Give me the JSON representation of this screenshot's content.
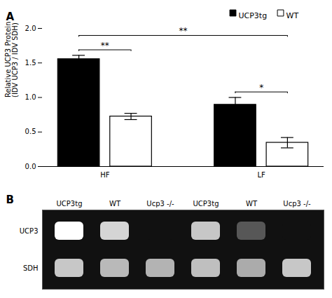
{
  "chart_data": [
    {
      "type": "bar",
      "title": "A",
      "ylabel": "Relative UCP3 Protein\n(IDV UCP3 / IDV SDH)",
      "categories": [
        "HF",
        "LF"
      ],
      "series": [
        {
          "name": "UCP3tg",
          "color": "#000000",
          "values": [
            1.555,
            0.895
          ],
          "errors": [
            0.055,
            0.105
          ]
        },
        {
          "name": "WT",
          "color": "#ffffff",
          "values": [
            0.725,
            0.345
          ],
          "errors": [
            0.045,
            0.075
          ]
        }
      ],
      "ylim": [
        0.0,
        2.0
      ],
      "yticks": [
        {
          "value": 0.0,
          "label": "0.0"
        },
        0.5,
        {
          "value": 1.0,
          "label": "1.0"
        },
        1.5,
        {
          "value": 2.0,
          "label": "2.0"
        }
      ],
      "legend": "upper right",
      "annotations": [
        {
          "text": "**",
          "between": [
            [
              "HF",
              "UCP3tg"
            ],
            [
              "HF",
              "WT"
            ]
          ]
        },
        {
          "text": "*",
          "between": [
            [
              "LF",
              "UCP3tg"
            ],
            [
              "LF",
              "WT"
            ]
          ]
        },
        {
          "text": "**",
          "between": [
            [
              "HF",
              "UCP3tg"
            ],
            [
              "LF",
              "WT"
            ]
          ]
        }
      ]
    },
    {
      "type": "heatmap",
      "title": "B",
      "x": [
        "UCP3tg",
        "WT",
        "Ucp3 -/-",
        "UCP3tg",
        "WT",
        "Ucp3 -/-"
      ],
      "y": [
        "UCP3",
        "SDH"
      ],
      "values": [
        [
          0.85,
          0.7,
          0.0,
          0.65,
          0.25,
          0.0
        ],
        [
          0.65,
          0.6,
          0.58,
          0.62,
          0.55,
          0.65
        ]
      ]
    }
  ]
}
